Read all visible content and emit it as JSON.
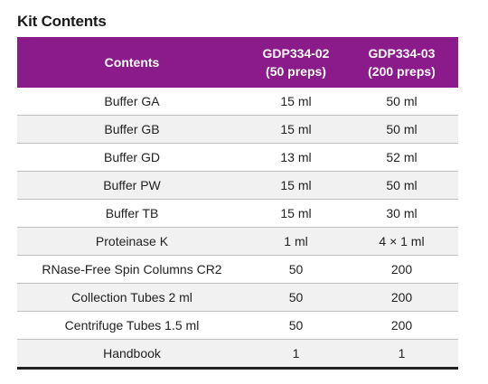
{
  "title": "Kit Contents",
  "table": {
    "headers": [
      {
        "line1": "Contents",
        "line2": ""
      },
      {
        "line1": "GDP334-02",
        "line2": "(50 preps)"
      },
      {
        "line1": "GDP334-03",
        "line2": "(200 preps)"
      }
    ],
    "rows": [
      [
        "Buffer GA",
        "15 ml",
        "50 ml"
      ],
      [
        "Buffer GB",
        "15 ml",
        "50 ml"
      ],
      [
        "Buffer GD",
        "13 ml",
        "52 ml"
      ],
      [
        "Buffer PW",
        "15 ml",
        "50 ml"
      ],
      [
        "Buffer TB",
        "15 ml",
        "30 ml"
      ],
      [
        "Proteinase K",
        "1 ml",
        "4 × 1 ml"
      ],
      [
        "RNase-Free Spin Columns CR2",
        "50",
        "200"
      ],
      [
        "Collection Tubes 2 ml",
        "50",
        "200"
      ],
      [
        "Centrifuge Tubes 1.5 ml",
        "50",
        "200"
      ],
      [
        "Handbook",
        "1",
        "1"
      ]
    ]
  },
  "colors": {
    "header_bg": "#8b1a8b",
    "header_text": "#ffffff",
    "alt_row_bg": "#f1f1f1"
  }
}
